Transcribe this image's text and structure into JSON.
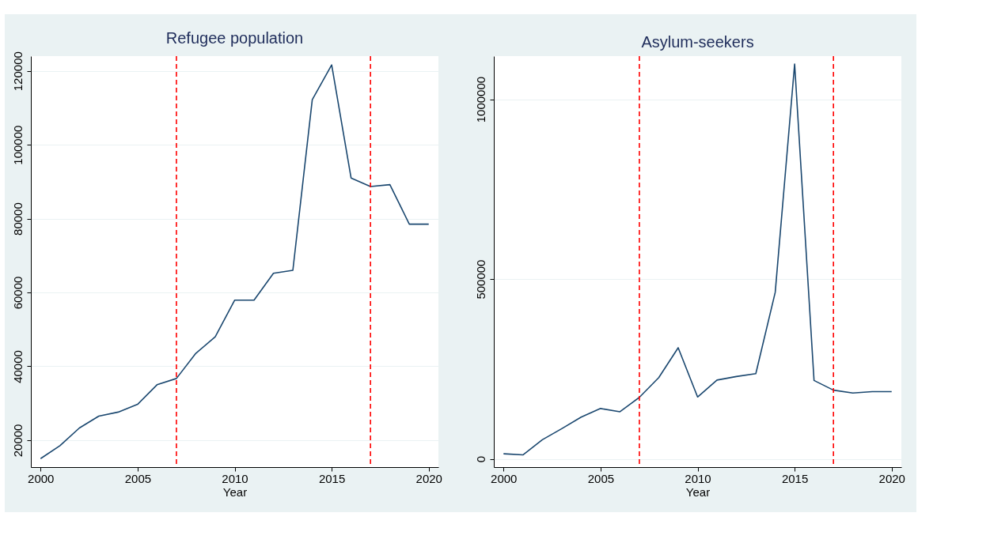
{
  "chart_data": [
    {
      "type": "line",
      "title": "Refugee population",
      "xlabel": "Year",
      "x": [
        2000,
        2001,
        2002,
        2003,
        2004,
        2005,
        2006,
        2007,
        2008,
        2009,
        2010,
        2011,
        2012,
        2013,
        2014,
        2015,
        2016,
        2017,
        2018,
        2019,
        2020
      ],
      "series": [
        {
          "color": "#1a476f",
          "values": [
            15000,
            18500,
            23300,
            26500,
            27600,
            29700,
            35000,
            36700,
            43500,
            48000,
            57900,
            57900,
            65200,
            66000,
            112200,
            121600,
            91000,
            88700,
            89200,
            78500,
            78500
          ]
        }
      ],
      "xlim": [
        1999.5,
        2020.5
      ],
      "xticks": [
        2000,
        2005,
        2010,
        2015,
        2020
      ],
      "ylim": [
        12700,
        124000
      ],
      "yticks": [
        20000,
        40000,
        60000,
        80000,
        100000,
        120000
      ],
      "grid": "y",
      "ref_lines": [
        {
          "axis": "x",
          "value": 2007,
          "color": "#ff0000",
          "line_style": "dashed"
        },
        {
          "axis": "x",
          "value": 2017,
          "color": "#ff0000",
          "line_style": "dashed"
        }
      ]
    },
    {
      "type": "line",
      "title": "Asylum-seekers",
      "xlabel": "Year",
      "x": [
        2000,
        2001,
        2002,
        2003,
        2004,
        2005,
        2006,
        2007,
        2008,
        2009,
        2010,
        2011,
        2012,
        2013,
        2014,
        2015,
        2016,
        2017,
        2018,
        2019,
        2020
      ],
      "series": [
        {
          "color": "#1a476f",
          "values": [
            14000,
            11000,
            53000,
            84000,
            116000,
            140000,
            131000,
            171000,
            226000,
            309000,
            172000,
            219000,
            229000,
            237000,
            463000,
            1098000,
            218000,
            191000,
            183000,
            187000,
            187000
          ]
        }
      ],
      "xlim": [
        1999.5,
        2020.5
      ],
      "xticks": [
        2000,
        2005,
        2010,
        2015,
        2020
      ],
      "ylim": [
        -23000,
        1120000
      ],
      "yticks": [
        0,
        500000,
        1000000
      ],
      "grid": "y",
      "ref_lines": [
        {
          "axis": "x",
          "value": 2007,
          "color": "#ff0000",
          "line_style": "dashed"
        },
        {
          "axis": "x",
          "value": 2017,
          "color": "#ff0000",
          "line_style": "dashed"
        }
      ]
    }
  ]
}
